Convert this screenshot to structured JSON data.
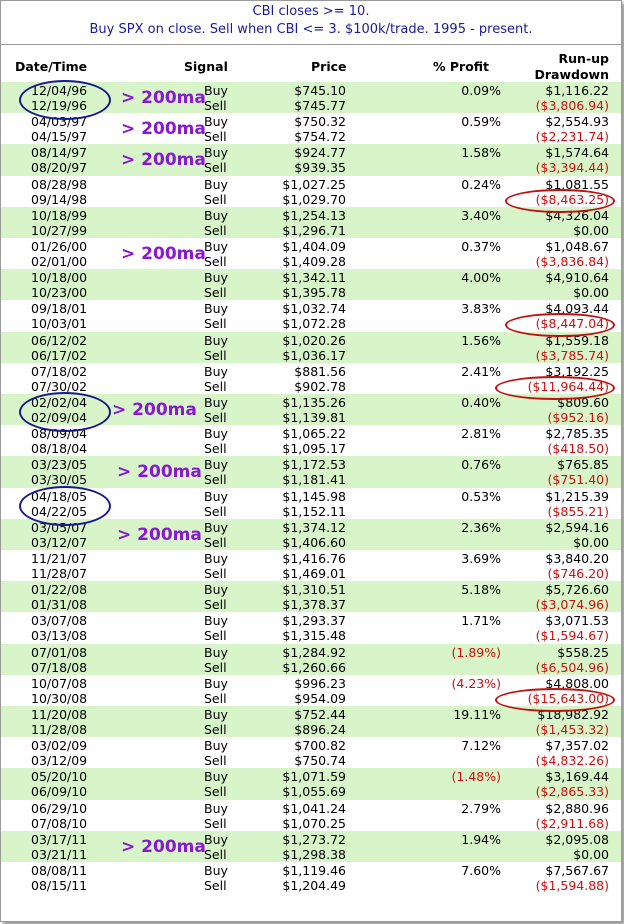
{
  "title": {
    "line1": "CBI closes >= 10.",
    "line2": "Buy SPX on close. Sell when CBI <= 3. $100k/trade. 1995 - present."
  },
  "headers": {
    "date": "Date/Time",
    "signal": "Signal",
    "price": "Price",
    "profit": "% Profit",
    "runup": "Run-up",
    "drawdown": "Drawdown"
  },
  "annotation_label": "> 200ma",
  "colors": {
    "row_shade": "#d7f5c8",
    "negative_text": "#d01010",
    "annotation_text": "#8a16d6",
    "blue_circle": "#1a1a8c",
    "red_circle": "#c01010",
    "title_text": "#1a1a9c"
  },
  "trades": [
    {
      "buy_date": "12/04/96",
      "sell_date": "12/19/96",
      "buy_price": "$745.10",
      "sell_price": "$745.77",
      "profit": "0.09%",
      "runup": "$1,116.22",
      "drawdown": "($3,806.94)",
      "above_200ma": true,
      "blue_circle": true
    },
    {
      "buy_date": "04/03/97",
      "sell_date": "04/15/97",
      "buy_price": "$750.32",
      "sell_price": "$754.72",
      "profit": "0.59%",
      "runup": "$2,554.93",
      "drawdown": "($2,231.74)",
      "above_200ma": true
    },
    {
      "buy_date": "08/14/97",
      "sell_date": "08/20/97",
      "buy_price": "$924.77",
      "sell_price": "$939.35",
      "profit": "1.58%",
      "runup": "$1,574.64",
      "drawdown": "($3,394.44)",
      "above_200ma": true
    },
    {
      "buy_date": "08/28/98",
      "sell_date": "09/14/98",
      "buy_price": "$1,027.25",
      "sell_price": "$1,029.70",
      "profit": "0.24%",
      "runup": "$1,081.55",
      "drawdown": "($8,463.25)",
      "red_circle": true
    },
    {
      "buy_date": "10/18/99",
      "sell_date": "10/27/99",
      "buy_price": "$1,254.13",
      "sell_price": "$1,296.71",
      "profit": "3.40%",
      "runup": "$4,326.04",
      "drawdown": "$0.00"
    },
    {
      "buy_date": "01/26/00",
      "sell_date": "02/01/00",
      "buy_price": "$1,404.09",
      "sell_price": "$1,409.28",
      "profit": "0.37%",
      "runup": "$1,048.67",
      "drawdown": "($3,836.84)",
      "above_200ma": true
    },
    {
      "buy_date": "10/18/00",
      "sell_date": "10/23/00",
      "buy_price": "$1,342.11",
      "sell_price": "$1,395.78",
      "profit": "4.00%",
      "runup": "$4,910.64",
      "drawdown": "$0.00"
    },
    {
      "buy_date": "09/18/01",
      "sell_date": "10/03/01",
      "buy_price": "$1,032.74",
      "sell_price": "$1,072.28",
      "profit": "3.83%",
      "runup": "$4,093.44",
      "drawdown": "($8,447.04)",
      "red_circle": true
    },
    {
      "buy_date": "06/12/02",
      "sell_date": "06/17/02",
      "buy_price": "$1,020.26",
      "sell_price": "$1,036.17",
      "profit": "1.56%",
      "runup": "$1,559.18",
      "drawdown": "($3,785.74)"
    },
    {
      "buy_date": "07/18/02",
      "sell_date": "07/30/02",
      "buy_price": "$881.56",
      "sell_price": "$902.78",
      "profit": "2.41%",
      "runup": "$3,192.25",
      "drawdown": "($11,964.44)",
      "red_circle": true
    },
    {
      "buy_date": "02/02/04",
      "sell_date": "02/09/04",
      "buy_price": "$1,135.26",
      "sell_price": "$1,139.81",
      "profit": "0.40%",
      "runup": "$809.60",
      "drawdown": "($952.16)",
      "above_200ma": true,
      "blue_circle": true
    },
    {
      "buy_date": "08/09/04",
      "sell_date": "08/18/04",
      "buy_price": "$1,065.22",
      "sell_price": "$1,095.17",
      "profit": "2.81%",
      "runup": "$2,785.35",
      "drawdown": "($418.50)"
    },
    {
      "buy_date": "03/23/05",
      "sell_date": "03/30/05",
      "buy_price": "$1,172.53",
      "sell_price": "$1,181.41",
      "profit": "0.76%",
      "runup": "$765.85",
      "drawdown": "($751.40)",
      "above_200ma": true
    },
    {
      "buy_date": "04/18/05",
      "sell_date": "04/22/05",
      "buy_price": "$1,145.98",
      "sell_price": "$1,152.11",
      "profit": "0.53%",
      "runup": "$1,215.39",
      "drawdown": "($855.21)",
      "blue_circle": true
    },
    {
      "buy_date": "03/05/07",
      "sell_date": "03/12/07",
      "buy_price": "$1,374.12",
      "sell_price": "$1,406.60",
      "profit": "2.36%",
      "runup": "$2,594.16",
      "drawdown": "$0.00",
      "above_200ma": true
    },
    {
      "buy_date": "11/21/07",
      "sell_date": "11/28/07",
      "buy_price": "$1,416.76",
      "sell_price": "$1,469.01",
      "profit": "3.69%",
      "runup": "$3,840.20",
      "drawdown": "($746.20)"
    },
    {
      "buy_date": "01/22/08",
      "sell_date": "01/31/08",
      "buy_price": "$1,310.51",
      "sell_price": "$1,378.37",
      "profit": "5.18%",
      "runup": "$5,726.60",
      "drawdown": "($3,074.96)"
    },
    {
      "buy_date": "03/07/08",
      "sell_date": "03/13/08",
      "buy_price": "$1,293.37",
      "sell_price": "$1,315.48",
      "profit": "1.71%",
      "runup": "$3,071.53",
      "drawdown": "($1,594.67)"
    },
    {
      "buy_date": "07/01/08",
      "sell_date": "07/18/08",
      "buy_price": "$1,284.92",
      "sell_price": "$1,260.66",
      "profit": "(1.89%)",
      "runup": "$558.25",
      "drawdown": "($6,504.96)",
      "profit_negative": true
    },
    {
      "buy_date": "10/07/08",
      "sell_date": "10/30/08",
      "buy_price": "$996.23",
      "sell_price": "$954.09",
      "profit": "(4.23%)",
      "runup": "$4,808.00",
      "drawdown": "($15,643.00)",
      "profit_negative": true,
      "red_circle": true
    },
    {
      "buy_date": "11/20/08",
      "sell_date": "11/28/08",
      "buy_price": "$752.44",
      "sell_price": "$896.24",
      "profit": "19.11%",
      "runup": "$18,982.92",
      "drawdown": "($1,453.32)"
    },
    {
      "buy_date": "03/02/09",
      "sell_date": "03/12/09",
      "buy_price": "$700.82",
      "sell_price": "$750.74",
      "profit": "7.12%",
      "runup": "$7,357.02",
      "drawdown": "($4,832.26)"
    },
    {
      "buy_date": "05/20/10",
      "sell_date": "06/09/10",
      "buy_price": "$1,071.59",
      "sell_price": "$1,055.69",
      "profit": "(1.48%)",
      "runup": "$3,169.44",
      "drawdown": "($2,865.33)",
      "profit_negative": true
    },
    {
      "buy_date": "06/29/10",
      "sell_date": "07/08/10",
      "buy_price": "$1,041.24",
      "sell_price": "$1,070.25",
      "profit": "2.79%",
      "runup": "$2,880.96",
      "drawdown": "($2,911.68)"
    },
    {
      "buy_date": "03/17/11",
      "sell_date": "03/21/11",
      "buy_price": "$1,273.72",
      "sell_price": "$1,298.38",
      "profit": "1.94%",
      "runup": "$2,095.08",
      "drawdown": "$0.00",
      "above_200ma": true
    },
    {
      "buy_date": "08/08/11",
      "sell_date": "08/15/11",
      "buy_price": "$1,119.46",
      "sell_price": "$1,204.49",
      "profit": "7.60%",
      "runup": "$7,567.67",
      "drawdown": "($1,594.88)"
    }
  ],
  "signal_labels": {
    "buy": "Buy",
    "sell": "Sell"
  }
}
